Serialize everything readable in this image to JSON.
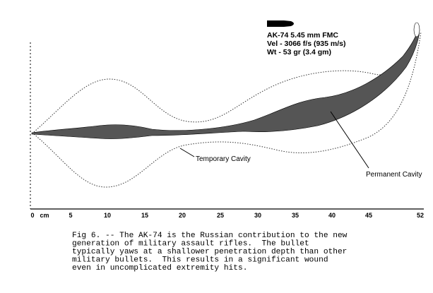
{
  "bullet": {
    "lines": [
      "AK-74 5.45 mm FMC",
      "Vel - 3066 f/s  (935 m/s)",
      "Wt - 53 gr  (3.4 gm)"
    ]
  },
  "axis": {
    "labels": [
      "0",
      "cm",
      "5",
      "10",
      "15",
      "20",
      "25",
      "30",
      "35",
      "40",
      "45",
      "52"
    ]
  },
  "labels": {
    "temporary": "Temporary Cavity",
    "permanent": "Permanent Cavity"
  },
  "caption": [
    "Fig 6. -- The AK-74 is the Russian contribution to the new",
    "generation of military assault rifles.  The bullet",
    "typically yaws at a shallower penetration depth than other",
    "military bullets.  This results in a significant wound",
    "even in uncomplicated extremity hits."
  ]
}
